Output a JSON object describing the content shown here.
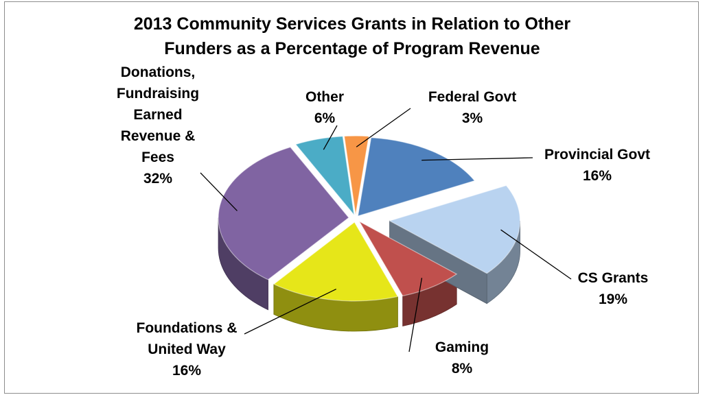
{
  "chart_data": {
    "type": "pie",
    "title_lines": [
      "2013 Community Services Grants in Relation to Other",
      "Funders as a Percentage of Program Revenue"
    ],
    "slices": [
      {
        "key": "federal",
        "label_lines": [
          "Federal Govt"
        ],
        "value": 3,
        "value_text": "3%",
        "color": "#F79646"
      },
      {
        "key": "provincial",
        "label_lines": [
          "Provincial Govt"
        ],
        "value": 16,
        "value_text": "16%",
        "color": "#4F81BD"
      },
      {
        "key": "csgrants",
        "label_lines": [
          "CS Grants"
        ],
        "value": 19,
        "value_text": "19%",
        "color": "#B9D3F0"
      },
      {
        "key": "gaming",
        "label_lines": [
          "Gaming"
        ],
        "value": 8,
        "value_text": "8%",
        "color": "#C0504D"
      },
      {
        "key": "foundations",
        "label_lines": [
          "Foundations &",
          "United Way"
        ],
        "value": 16,
        "value_text": "16%",
        "color": "#E6E619"
      },
      {
        "key": "donations",
        "label_lines": [
          "Donations,",
          "Fundraising",
          "Earned",
          "Revenue &",
          "Fees"
        ],
        "value": 32,
        "value_text": "32%",
        "color": "#8064A2"
      },
      {
        "key": "other",
        "label_lines": [
          "Other"
        ],
        "value": 6,
        "value_text": "6%",
        "color": "#4BACC6"
      }
    ]
  }
}
